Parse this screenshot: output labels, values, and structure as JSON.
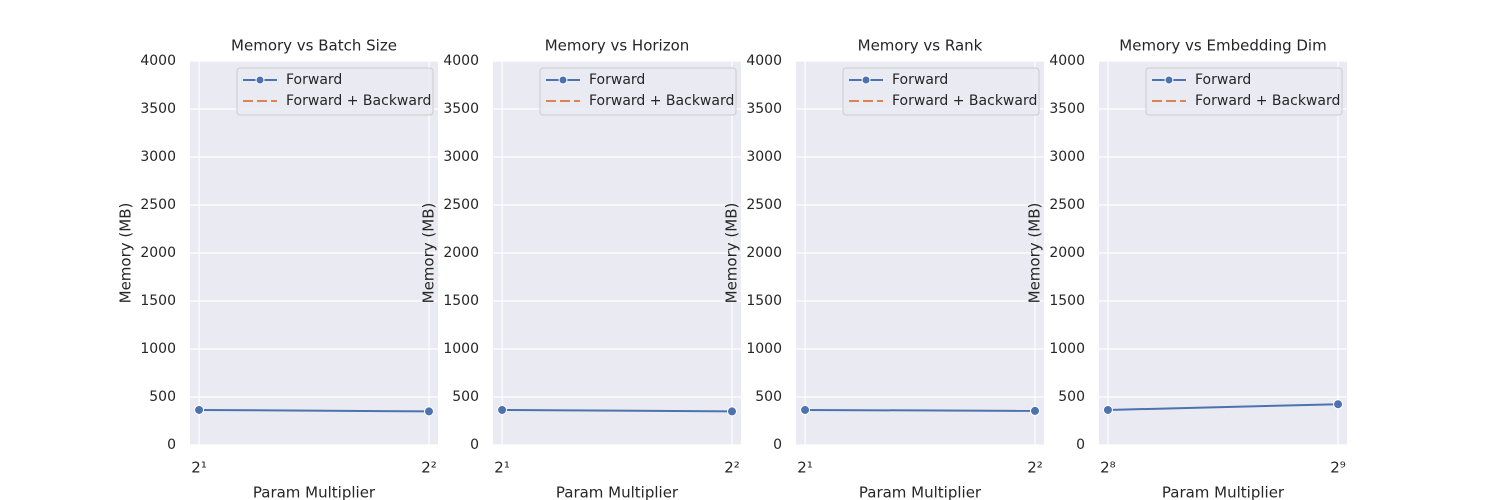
{
  "chart_data": [
    {
      "type": "line",
      "title": "Memory vs Batch Size",
      "xlabel": "Param Multiplier",
      "ylabel": "Memory (MB)",
      "x": [
        2,
        4
      ],
      "xlog": true,
      "xlim": [
        1.946,
        4.11
      ],
      "xticks": [
        {
          "value": 2,
          "label": "2¹"
        },
        {
          "value": 4,
          "label": "2²"
        }
      ],
      "ylim": [
        0,
        4000
      ],
      "yticks": [
        0,
        500,
        1000,
        1500,
        2000,
        2500,
        3000,
        3500,
        4000
      ],
      "grid": true,
      "legend": "upper right",
      "series": [
        {
          "name": "Forward",
          "color": "#4c72b0",
          "values": [
            365,
            350
          ]
        },
        {
          "name": "Forward + Backward",
          "color": "#dd8452",
          "values": [
            null,
            null
          ]
        }
      ]
    },
    {
      "type": "line",
      "title": "Memory vs Horizon",
      "xlabel": "Param Multiplier",
      "ylabel": "Memory (MB)",
      "x": [
        2,
        4
      ],
      "xlog": true,
      "xlim": [
        1.946,
        4.11
      ],
      "xticks": [
        {
          "value": 2,
          "label": "2¹"
        },
        {
          "value": 4,
          "label": "2²"
        }
      ],
      "ylim": [
        0,
        4000
      ],
      "yticks": [
        0,
        500,
        1000,
        1500,
        2000,
        2500,
        3000,
        3500,
        4000
      ],
      "grid": true,
      "legend": "upper right",
      "series": [
        {
          "name": "Forward",
          "color": "#4c72b0",
          "values": [
            365,
            350
          ]
        },
        {
          "name": "Forward + Backward",
          "color": "#dd8452",
          "values": [
            null,
            null
          ]
        }
      ]
    },
    {
      "type": "line",
      "title": "Memory vs Rank",
      "xlabel": "Param Multiplier",
      "ylabel": "Memory (MB)",
      "x": [
        2,
        4
      ],
      "xlog": true,
      "xlim": [
        1.946,
        4.11
      ],
      "xticks": [
        {
          "value": 2,
          "label": "2¹"
        },
        {
          "value": 4,
          "label": "2²"
        }
      ],
      "ylim": [
        0,
        4000
      ],
      "yticks": [
        0,
        500,
        1000,
        1500,
        2000,
        2500,
        3000,
        3500,
        4000
      ],
      "grid": true,
      "legend": "upper right",
      "series": [
        {
          "name": "Forward",
          "color": "#4c72b0",
          "values": [
            365,
            355
          ]
        },
        {
          "name": "Forward + Backward",
          "color": "#dd8452",
          "values": [
            null,
            null
          ]
        }
      ]
    },
    {
      "type": "line",
      "title": "Memory vs Embedding Dim",
      "xlabel": "Param Multiplier",
      "ylabel": "Memory (MB)",
      "x": [
        256,
        512
      ],
      "xlog": true,
      "xlim": [
        249.2,
        526
      ],
      "xticks": [
        {
          "value": 256,
          "label": "2⁸"
        },
        {
          "value": 512,
          "label": "2⁹"
        }
      ],
      "ylim": [
        0,
        4000
      ],
      "yticks": [
        0,
        500,
        1000,
        1500,
        2000,
        2500,
        3000,
        3500,
        4000
      ],
      "grid": true,
      "legend": "upper right",
      "series": [
        {
          "name": "Forward",
          "color": "#4c72b0",
          "values": [
            365,
            425
          ]
        },
        {
          "name": "Forward + Backward",
          "color": "#dd8452",
          "values": [
            null,
            null
          ]
        }
      ]
    }
  ]
}
